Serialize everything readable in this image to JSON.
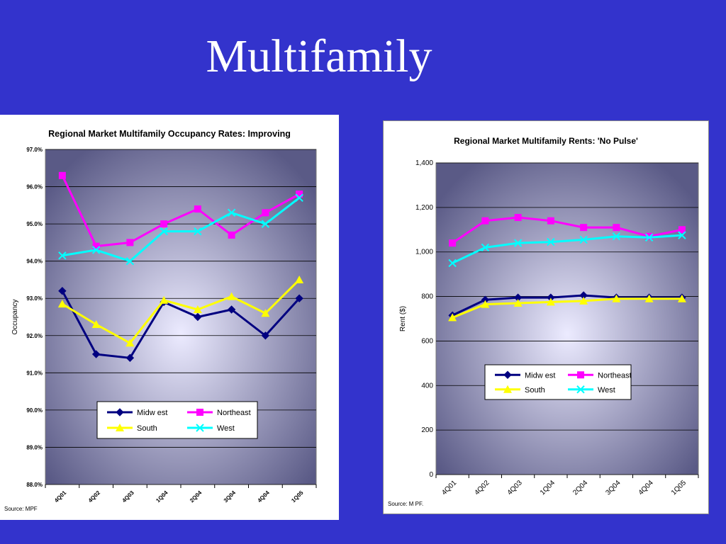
{
  "slide": {
    "title": "Multifamily"
  },
  "chart_data": [
    {
      "type": "line",
      "title": "Regional Market Multifamily Occupancy Rates: Improving",
      "xlabel": "",
      "ylabel": "Occupancy",
      "categories": [
        "4Q01",
        "4Q02",
        "4Q03",
        "1Q04",
        "2Q04",
        "3Q04",
        "4Q04",
        "1Q05"
      ],
      "yticks": [
        "97.0%",
        "96.0%",
        "95.0%",
        "94.0%",
        "93.0%",
        "92.0%",
        "91.0%",
        "90.0%",
        "89.0%",
        "88.0%"
      ],
      "ylim": [
        88,
        97
      ],
      "grid": true,
      "legend_position": "bottom-center",
      "series": [
        {
          "name": "Midw est",
          "color": "#000080",
          "marker": "diamond",
          "values": [
            93.2,
            91.5,
            91.4,
            92.9,
            92.5,
            92.7,
            92.0,
            93.0
          ]
        },
        {
          "name": "Northeast",
          "color": "#ff00ff",
          "marker": "square",
          "values": [
            96.3,
            94.4,
            94.5,
            95.0,
            95.4,
            94.7,
            95.3,
            95.8
          ]
        },
        {
          "name": "South",
          "color": "#ffff00",
          "marker": "triangle",
          "values": [
            92.85,
            92.3,
            91.8,
            92.95,
            92.7,
            93.05,
            92.6,
            93.5
          ]
        },
        {
          "name": "West",
          "color": "#00ffff",
          "marker": "x",
          "values": [
            94.15,
            94.3,
            94.0,
            94.8,
            94.8,
            95.3,
            95.0,
            95.7
          ]
        }
      ],
      "source": "Source: MPF"
    },
    {
      "type": "line",
      "title": "Regional Market Multifamily Rents: 'No Pulse'",
      "xlabel": "",
      "ylabel": "Rent ($)",
      "categories": [
        "4Q01",
        "4Q02",
        "4Q03",
        "1Q04",
        "2Q04",
        "3Q04",
        "4Q04",
        "1Q05"
      ],
      "yticks": [
        "1,400",
        "1,200",
        "1,000",
        "800",
        "600",
        "400",
        "200",
        "0"
      ],
      "ylim": [
        0,
        1400
      ],
      "grid": true,
      "legend_position": "center",
      "series": [
        {
          "name": "Midw est",
          "color": "#000080",
          "marker": "diamond",
          "values": [
            715,
            785,
            795,
            795,
            805,
            795,
            795,
            795
          ]
        },
        {
          "name": "Northeast",
          "color": "#ff00ff",
          "marker": "square",
          "values": [
            1040,
            1140,
            1155,
            1140,
            1110,
            1110,
            1070,
            1100
          ]
        },
        {
          "name": "South",
          "color": "#ffff00",
          "marker": "triangle",
          "values": [
            705,
            765,
            770,
            775,
            780,
            790,
            790,
            790
          ]
        },
        {
          "name": "West",
          "color": "#00ffff",
          "marker": "x",
          "values": [
            950,
            1020,
            1040,
            1045,
            1055,
            1070,
            1065,
            1075
          ]
        }
      ],
      "source": "Source: M PF."
    }
  ]
}
